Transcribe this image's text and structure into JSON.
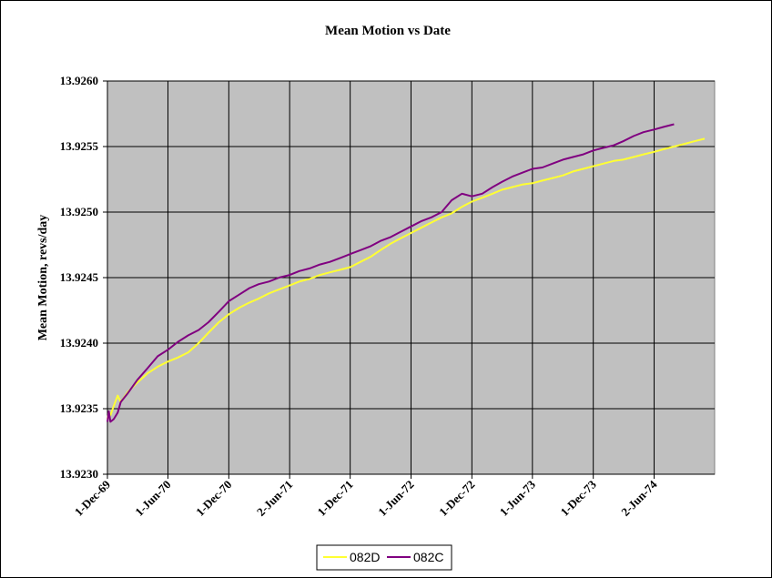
{
  "chart_data": {
    "type": "line",
    "title": "Mean Motion vs Date",
    "xlabel": "",
    "ylabel": "Mean Motion, revs/day",
    "ylim": [
      13.923,
      13.926
    ],
    "yticks": [
      "13.9230",
      "13.9235",
      "13.9240",
      "13.9245",
      "13.9250",
      "13.9255",
      "13.9260"
    ],
    "xlim": [
      "1969-12-01",
      "1974-12-01"
    ],
    "xticks": [
      {
        "date": "1969-12-01",
        "label": "1-Dec-69"
      },
      {
        "date": "1970-06-01",
        "label": "1-Jun-70"
      },
      {
        "date": "1970-12-01",
        "label": "1-Dec-70"
      },
      {
        "date": "1971-06-02",
        "label": "2-Jun-71"
      },
      {
        "date": "1971-12-01",
        "label": "1-Dec-71"
      },
      {
        "date": "1972-06-01",
        "label": "1-Jun-72"
      },
      {
        "date": "1972-12-01",
        "label": "1-Dec-72"
      },
      {
        "date": "1973-06-01",
        "label": "1-Jun-73"
      },
      {
        "date": "1973-12-01",
        "label": "1-Dec-73"
      },
      {
        "date": "1974-06-02",
        "label": "2-Jun-74"
      }
    ],
    "grid": true,
    "legend": "bottom",
    "series": [
      {
        "name": "082D",
        "color": "#ffff33",
        "points": [
          [
            "1969-12-01",
            13.92342
          ],
          [
            "1969-12-05",
            13.92347
          ],
          [
            "1969-12-10",
            13.92345
          ],
          [
            "1969-12-20",
            13.92352
          ],
          [
            "1970-01-01",
            13.9236
          ],
          [
            "1970-01-10",
            13.92355
          ],
          [
            "1970-02-01",
            13.92363
          ],
          [
            "1970-03-01",
            13.9237
          ],
          [
            "1970-04-01",
            13.92377
          ],
          [
            "1970-05-01",
            13.92382
          ],
          [
            "1970-06-01",
            13.92386
          ],
          [
            "1970-07-01",
            13.92389
          ],
          [
            "1970-08-01",
            13.92393
          ],
          [
            "1970-09-01",
            13.924
          ],
          [
            "1970-10-01",
            13.92408
          ],
          [
            "1970-11-01",
            13.92416
          ],
          [
            "1970-12-01",
            13.92422
          ],
          [
            "1971-01-01",
            13.92427
          ],
          [
            "1971-02-01",
            13.92431
          ],
          [
            "1971-03-01",
            13.92434
          ],
          [
            "1971-04-01",
            13.92438
          ],
          [
            "1971-05-01",
            13.92441
          ],
          [
            "1971-06-02",
            13.92444
          ],
          [
            "1971-07-01",
            13.92447
          ],
          [
            "1971-08-01",
            13.92449
          ],
          [
            "1971-09-01",
            13.92452
          ],
          [
            "1971-10-01",
            13.92454
          ],
          [
            "1971-11-01",
            13.92456
          ],
          [
            "1971-12-01",
            13.92458
          ],
          [
            "1972-01-01",
            13.92462
          ],
          [
            "1972-02-01",
            13.92466
          ],
          [
            "1972-03-01",
            13.92471
          ],
          [
            "1972-04-01",
            13.92476
          ],
          [
            "1972-05-01",
            13.9248
          ],
          [
            "1972-06-01",
            13.92484
          ],
          [
            "1972-07-01",
            13.92488
          ],
          [
            "1972-08-01",
            13.92492
          ],
          [
            "1972-09-01",
            13.92496
          ],
          [
            "1972-10-01",
            13.92499
          ],
          [
            "1972-11-01",
            13.92504
          ],
          [
            "1972-12-01",
            13.92508
          ],
          [
            "1973-01-01",
            13.92511
          ],
          [
            "1973-02-01",
            13.92514
          ],
          [
            "1973-03-01",
            13.92517
          ],
          [
            "1973-04-01",
            13.92519
          ],
          [
            "1973-05-01",
            13.92521
          ],
          [
            "1973-06-01",
            13.92522
          ],
          [
            "1973-07-01",
            13.92524
          ],
          [
            "1973-08-01",
            13.92526
          ],
          [
            "1973-09-01",
            13.92528
          ],
          [
            "1973-10-01",
            13.92531
          ],
          [
            "1973-11-01",
            13.92533
          ],
          [
            "1973-12-01",
            13.92535
          ],
          [
            "1974-01-01",
            13.92537
          ],
          [
            "1974-02-01",
            13.92539
          ],
          [
            "1974-03-01",
            13.9254
          ],
          [
            "1974-04-01",
            13.92542
          ],
          [
            "1974-05-01",
            13.92544
          ],
          [
            "1974-06-02",
            13.92546
          ],
          [
            "1974-07-01",
            13.92548
          ],
          [
            "1974-08-01",
            13.9255
          ],
          [
            "1974-09-01",
            13.92552
          ],
          [
            "1974-10-01",
            13.92554
          ],
          [
            "1974-11-01",
            13.92556
          ]
        ]
      },
      {
        "name": "082C",
        "color": "#800080",
        "points": [
          [
            "1969-12-01",
            13.9234
          ],
          [
            "1969-12-05",
            13.92348
          ],
          [
            "1969-12-10",
            13.9234
          ],
          [
            "1969-12-20",
            13.92342
          ],
          [
            "1970-01-01",
            13.92347
          ],
          [
            "1970-01-10",
            13.92355
          ],
          [
            "1970-02-01",
            13.92362
          ],
          [
            "1970-03-01",
            13.92372
          ],
          [
            "1970-04-01",
            13.92381
          ],
          [
            "1970-05-01",
            13.9239
          ],
          [
            "1970-06-01",
            13.92395
          ],
          [
            "1970-07-01",
            13.92401
          ],
          [
            "1970-08-01",
            13.92406
          ],
          [
            "1970-09-01",
            13.9241
          ],
          [
            "1970-10-01",
            13.92416
          ],
          [
            "1970-11-01",
            13.92424
          ],
          [
            "1970-12-01",
            13.92432
          ],
          [
            "1971-01-01",
            13.92437
          ],
          [
            "1971-02-01",
            13.92442
          ],
          [
            "1971-03-01",
            13.92445
          ],
          [
            "1971-04-01",
            13.92447
          ],
          [
            "1971-05-01",
            13.9245
          ],
          [
            "1971-06-02",
            13.92452
          ],
          [
            "1971-07-01",
            13.92455
          ],
          [
            "1971-08-01",
            13.92457
          ],
          [
            "1971-09-01",
            13.9246
          ],
          [
            "1971-10-01",
            13.92462
          ],
          [
            "1971-11-01",
            13.92465
          ],
          [
            "1971-12-01",
            13.92468
          ],
          [
            "1972-01-01",
            13.92471
          ],
          [
            "1972-02-01",
            13.92474
          ],
          [
            "1972-03-01",
            13.92478
          ],
          [
            "1972-04-01",
            13.92481
          ],
          [
            "1972-05-01",
            13.92485
          ],
          [
            "1972-06-01",
            13.92489
          ],
          [
            "1972-07-01",
            13.92493
          ],
          [
            "1972-08-01",
            13.92496
          ],
          [
            "1972-09-01",
            13.925
          ],
          [
            "1972-10-01",
            13.92509
          ],
          [
            "1972-11-01",
            13.92514
          ],
          [
            "1972-12-01",
            13.92512
          ],
          [
            "1973-01-01",
            13.92514
          ],
          [
            "1973-02-01",
            13.92519
          ],
          [
            "1973-03-01",
            13.92523
          ],
          [
            "1973-04-01",
            13.92527
          ],
          [
            "1973-05-01",
            13.9253
          ],
          [
            "1973-06-01",
            13.92533
          ],
          [
            "1973-07-01",
            13.92534
          ],
          [
            "1973-08-01",
            13.92537
          ],
          [
            "1973-09-01",
            13.9254
          ],
          [
            "1973-10-01",
            13.92542
          ],
          [
            "1973-11-01",
            13.92544
          ],
          [
            "1973-12-01",
            13.92547
          ],
          [
            "1974-01-01",
            13.92549
          ],
          [
            "1974-02-01",
            13.92551
          ],
          [
            "1974-03-01",
            13.92554
          ],
          [
            "1974-04-01",
            13.92558
          ],
          [
            "1974-05-01",
            13.92561
          ],
          [
            "1974-06-02",
            13.92563
          ],
          [
            "1974-07-01",
            13.92565
          ],
          [
            "1974-08-01",
            13.92567
          ]
        ]
      }
    ]
  }
}
